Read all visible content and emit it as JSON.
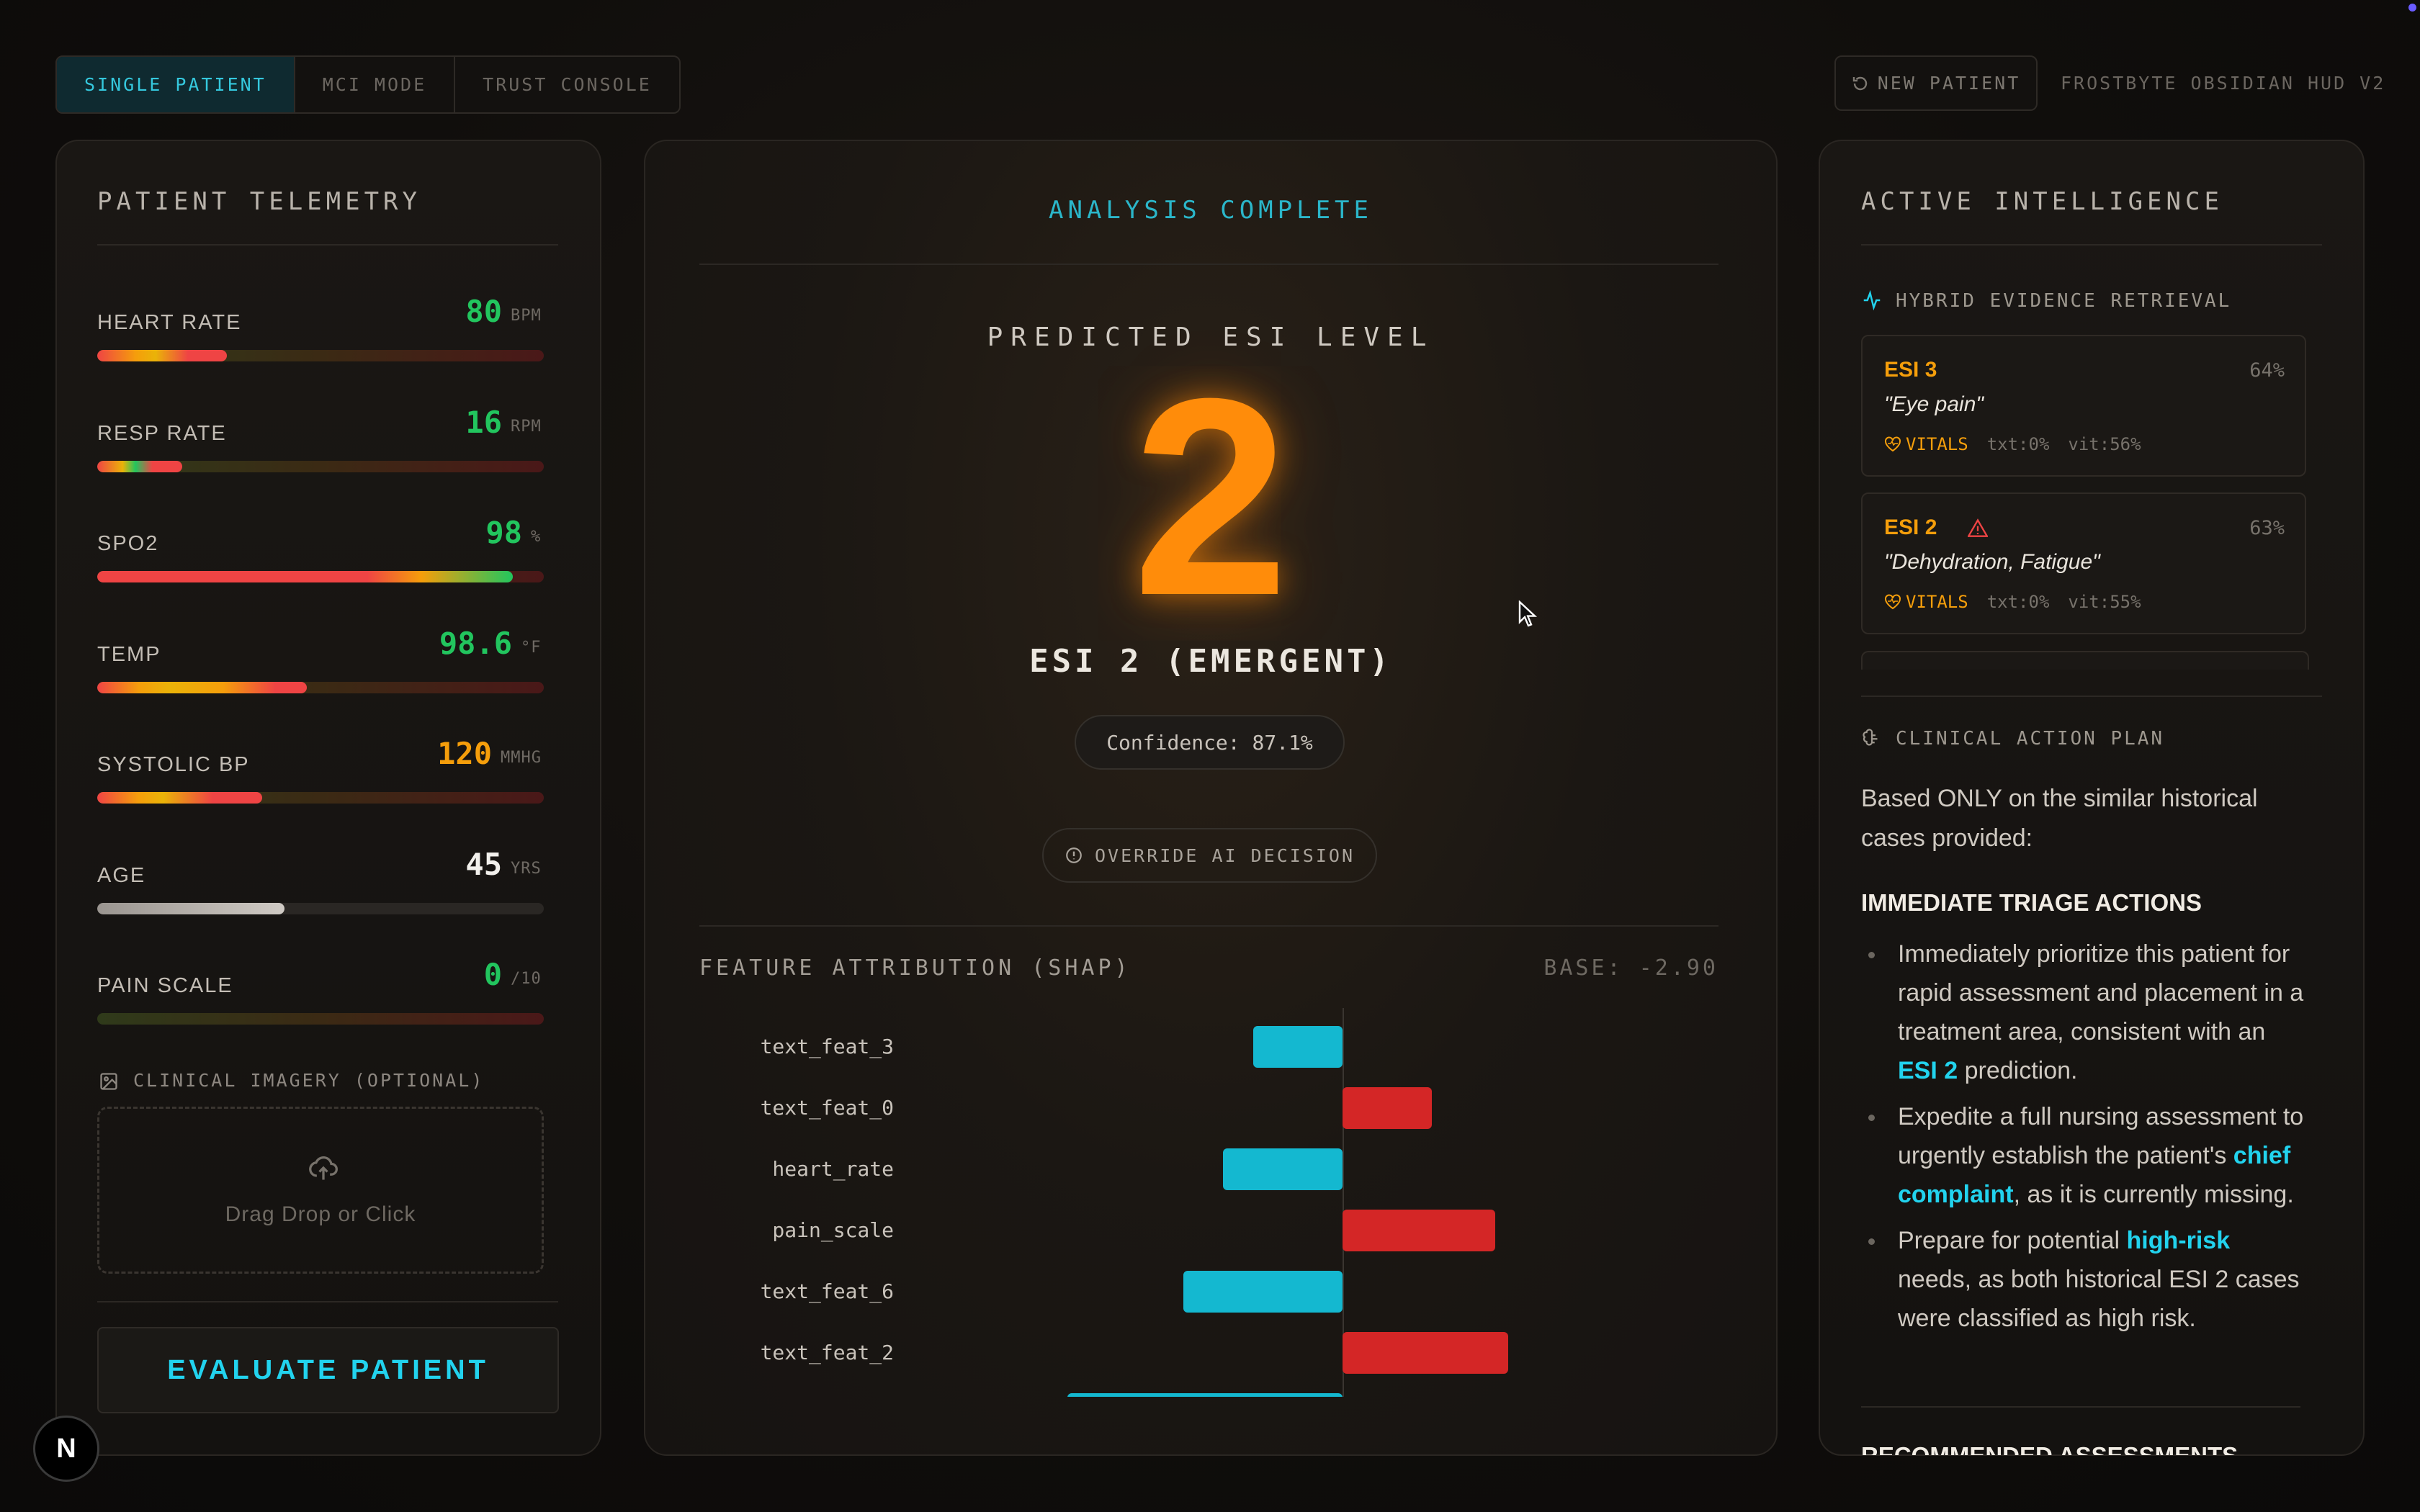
{
  "top_bar": {
    "modes": [
      "SINGLE PATIENT",
      "MCI MODE",
      "TRUST CONSOLE"
    ],
    "active_mode": "SINGLE PATIENT",
    "new_patient_label": "NEW PATIENT",
    "brand": "FROSTBYTE OBSIDIAN HUD V2"
  },
  "telemetry": {
    "title": "PATIENT TELEMETRY",
    "metrics": [
      {
        "label": "HEART RATE",
        "value": "80",
        "unit": "BPM",
        "fill": 0.29,
        "color": "#22c55e"
      },
      {
        "label": "RESP RATE",
        "value": "16",
        "unit": "RPM",
        "fill": 0.19,
        "color": "#22c55e"
      },
      {
        "label": "SPO2",
        "value": "98",
        "unit": "%",
        "fill": 0.93,
        "color": "#22c55e"
      },
      {
        "label": "TEMP",
        "value": "98.6",
        "unit": "°F",
        "fill": 0.47,
        "color": "#22c55e"
      },
      {
        "label": "SYSTOLIC BP",
        "value": "120",
        "unit": "MMHG",
        "fill": 0.37,
        "color": "#f59e0b"
      },
      {
        "label": "AGE",
        "value": "45",
        "unit": "YRS",
        "fill": 0.42,
        "color": "#f2f0ec"
      },
      {
        "label": "PAIN SCALE",
        "value": "0",
        "unit": "/10",
        "fill": 0.0,
        "color": "#22c55e"
      }
    ],
    "imagery_label": "CLINICAL IMAGERY (OPTIONAL)",
    "dropzone_text": "Drag Drop or Click",
    "evaluate_label": "EVALUATE PATIENT"
  },
  "center": {
    "status": "ANALYSIS COMPLETE",
    "predicted_label": "PREDICTED ESI LEVEL",
    "level": "2",
    "level_text": "ESI 2 (EMERGENT)",
    "confidence": "Confidence: 87.1%",
    "override_label": "OVERRIDE AI DECISION",
    "shap_title": "FEATURE ATTRIBUTION (SHAP)",
    "shap_base": "BASE: -2.90"
  },
  "chart_data": {
    "type": "bar",
    "categories": [
      "text_feat_3",
      "text_feat_0",
      "heart_rate",
      "pain_scale",
      "text_feat_6",
      "text_feat_2"
    ],
    "values": [
      -0.27,
      0.27,
      -0.36,
      0.46,
      -0.48,
      0.5
    ],
    "partial_bar_value": -0.83,
    "xlim": [
      -1.0,
      1.0
    ],
    "colors": {
      "negative": "#14b8d0",
      "positive": "#d42626"
    }
  },
  "intelligence": {
    "title": "ACTIVE INTELLIGENCE",
    "retrieval_label": "HYBRID EVIDENCE RETRIEVAL",
    "evidence": [
      {
        "esi": "ESI 3",
        "pct": "64%",
        "quote": "\"Eye pain\"",
        "vitals": "VITALS",
        "txt": "txt:0%",
        "vit": "vit:56%",
        "warn": false
      },
      {
        "esi": "ESI 2",
        "pct": "63%",
        "quote": "\"Dehydration, Fatigue\"",
        "vitals": "VITALS",
        "txt": "txt:0%",
        "vit": "vit:55%",
        "warn": true
      }
    ],
    "plan_label": "CLINICAL ACTION PLAN",
    "plan_intro": "Based ONLY on the similar historical cases provided:",
    "immediate_heading": "IMMEDIATE TRIAGE ACTIONS",
    "actions": [
      {
        "parts": [
          "Immediately prioritize this patient for rapid assessment and placement in a treatment area, consistent with an ",
          "ESI 2",
          " prediction."
        ]
      },
      {
        "parts": [
          "Expedite a full nursing assessment to urgently establish the patient's ",
          "chief complaint",
          ", as it is currently missing."
        ]
      },
      {
        "parts": [
          "Prepare for potential ",
          "high-risk",
          " needs, as both historical ESI 2 cases were classified as high risk."
        ]
      }
    ],
    "next_heading": "RECOMMENDED ASSESSMENTS"
  },
  "badge": "N"
}
